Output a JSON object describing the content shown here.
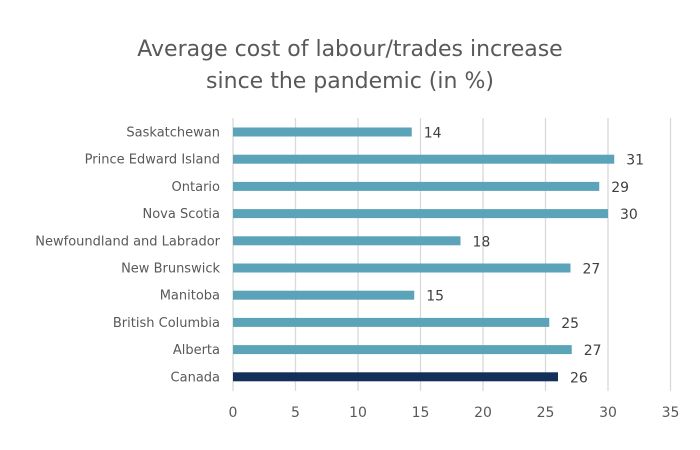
{
  "chart_data": {
    "type": "bar",
    "orientation": "horizontal",
    "title": [
      "Average cost of labour/trades increase",
      "since the pandemic (in %)"
    ],
    "categories": [
      "Saskatchewan",
      "Prince Edward Island",
      "Ontario",
      "Nova Scotia",
      "Newfoundland and Labrador",
      "New Brunswick",
      "Manitoba",
      "British Columbia",
      "Alberta",
      "Canada"
    ],
    "values": [
      14.3,
      30.5,
      29.3,
      30.0,
      18.2,
      27.0,
      14.5,
      25.3,
      27.1,
      26.0
    ],
    "labels": [
      "14",
      "31",
      "29",
      "30",
      "18",
      "27",
      "15",
      "25",
      "27",
      "26"
    ],
    "colors": [
      "#5ba3b9",
      "#5ba3b9",
      "#5ba3b9",
      "#5ba3b9",
      "#5ba3b9",
      "#5ba3b9",
      "#5ba3b9",
      "#5ba3b9",
      "#5ba3b9",
      "#14305a"
    ],
    "xlim": [
      0,
      35
    ],
    "xticks": [
      "0",
      "5",
      "10",
      "15",
      "20",
      "25",
      "30",
      "35"
    ],
    "xlabel": "",
    "ylabel": "",
    "grid": "vertical",
    "legend": "none"
  }
}
